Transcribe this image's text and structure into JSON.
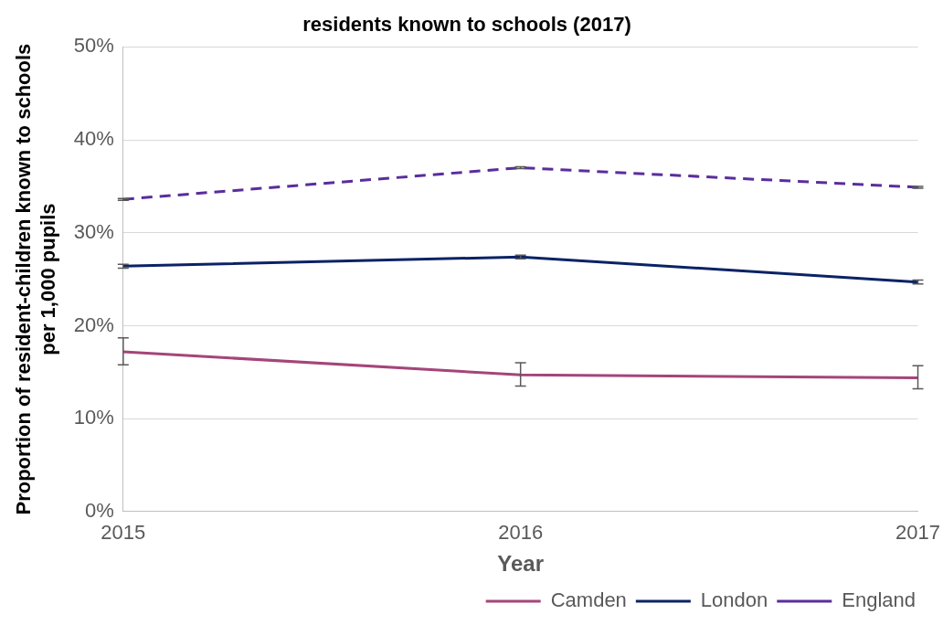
{
  "chart_data": {
    "type": "line",
    "title": "residents known to schools (2017)",
    "xlabel": "Year",
    "ylabel": "Proportion of resident-children known to schools\nper 1,000 pupils",
    "categories": [
      "2015",
      "2016",
      "2017"
    ],
    "series": [
      {
        "name": "Camden",
        "color": "#a4457a",
        "values": [
          17.2,
          14.7,
          14.4
        ],
        "errors": [
          [
            15.8,
            18.7
          ],
          [
            13.5,
            16.0
          ],
          [
            13.2,
            15.7
          ]
        ],
        "line_style": "solid"
      },
      {
        "name": "London",
        "color": "#0b2265",
        "values": [
          26.4,
          27.4,
          24.7
        ],
        "errors": [
          0.2,
          0.2,
          0.2
        ],
        "line_style": "solid"
      },
      {
        "name": "England",
        "color": "#5a2d9c",
        "values": [
          33.6,
          37.0,
          34.9
        ],
        "errors": [
          0.1,
          0.1,
          0.1
        ],
        "line_style": "dashed"
      }
    ],
    "ylim": [
      0,
      50
    ],
    "yticks": [
      {
        "value": 0,
        "label": "0%"
      },
      {
        "value": 10,
        "label": "10%"
      },
      {
        "value": 20,
        "label": "20%"
      },
      {
        "value": 30,
        "label": "30%"
      },
      {
        "value": 40,
        "label": "40%"
      },
      {
        "value": 50,
        "label": "50%"
      }
    ],
    "grid": "y",
    "legend": "bottom right",
    "marker": "none"
  }
}
